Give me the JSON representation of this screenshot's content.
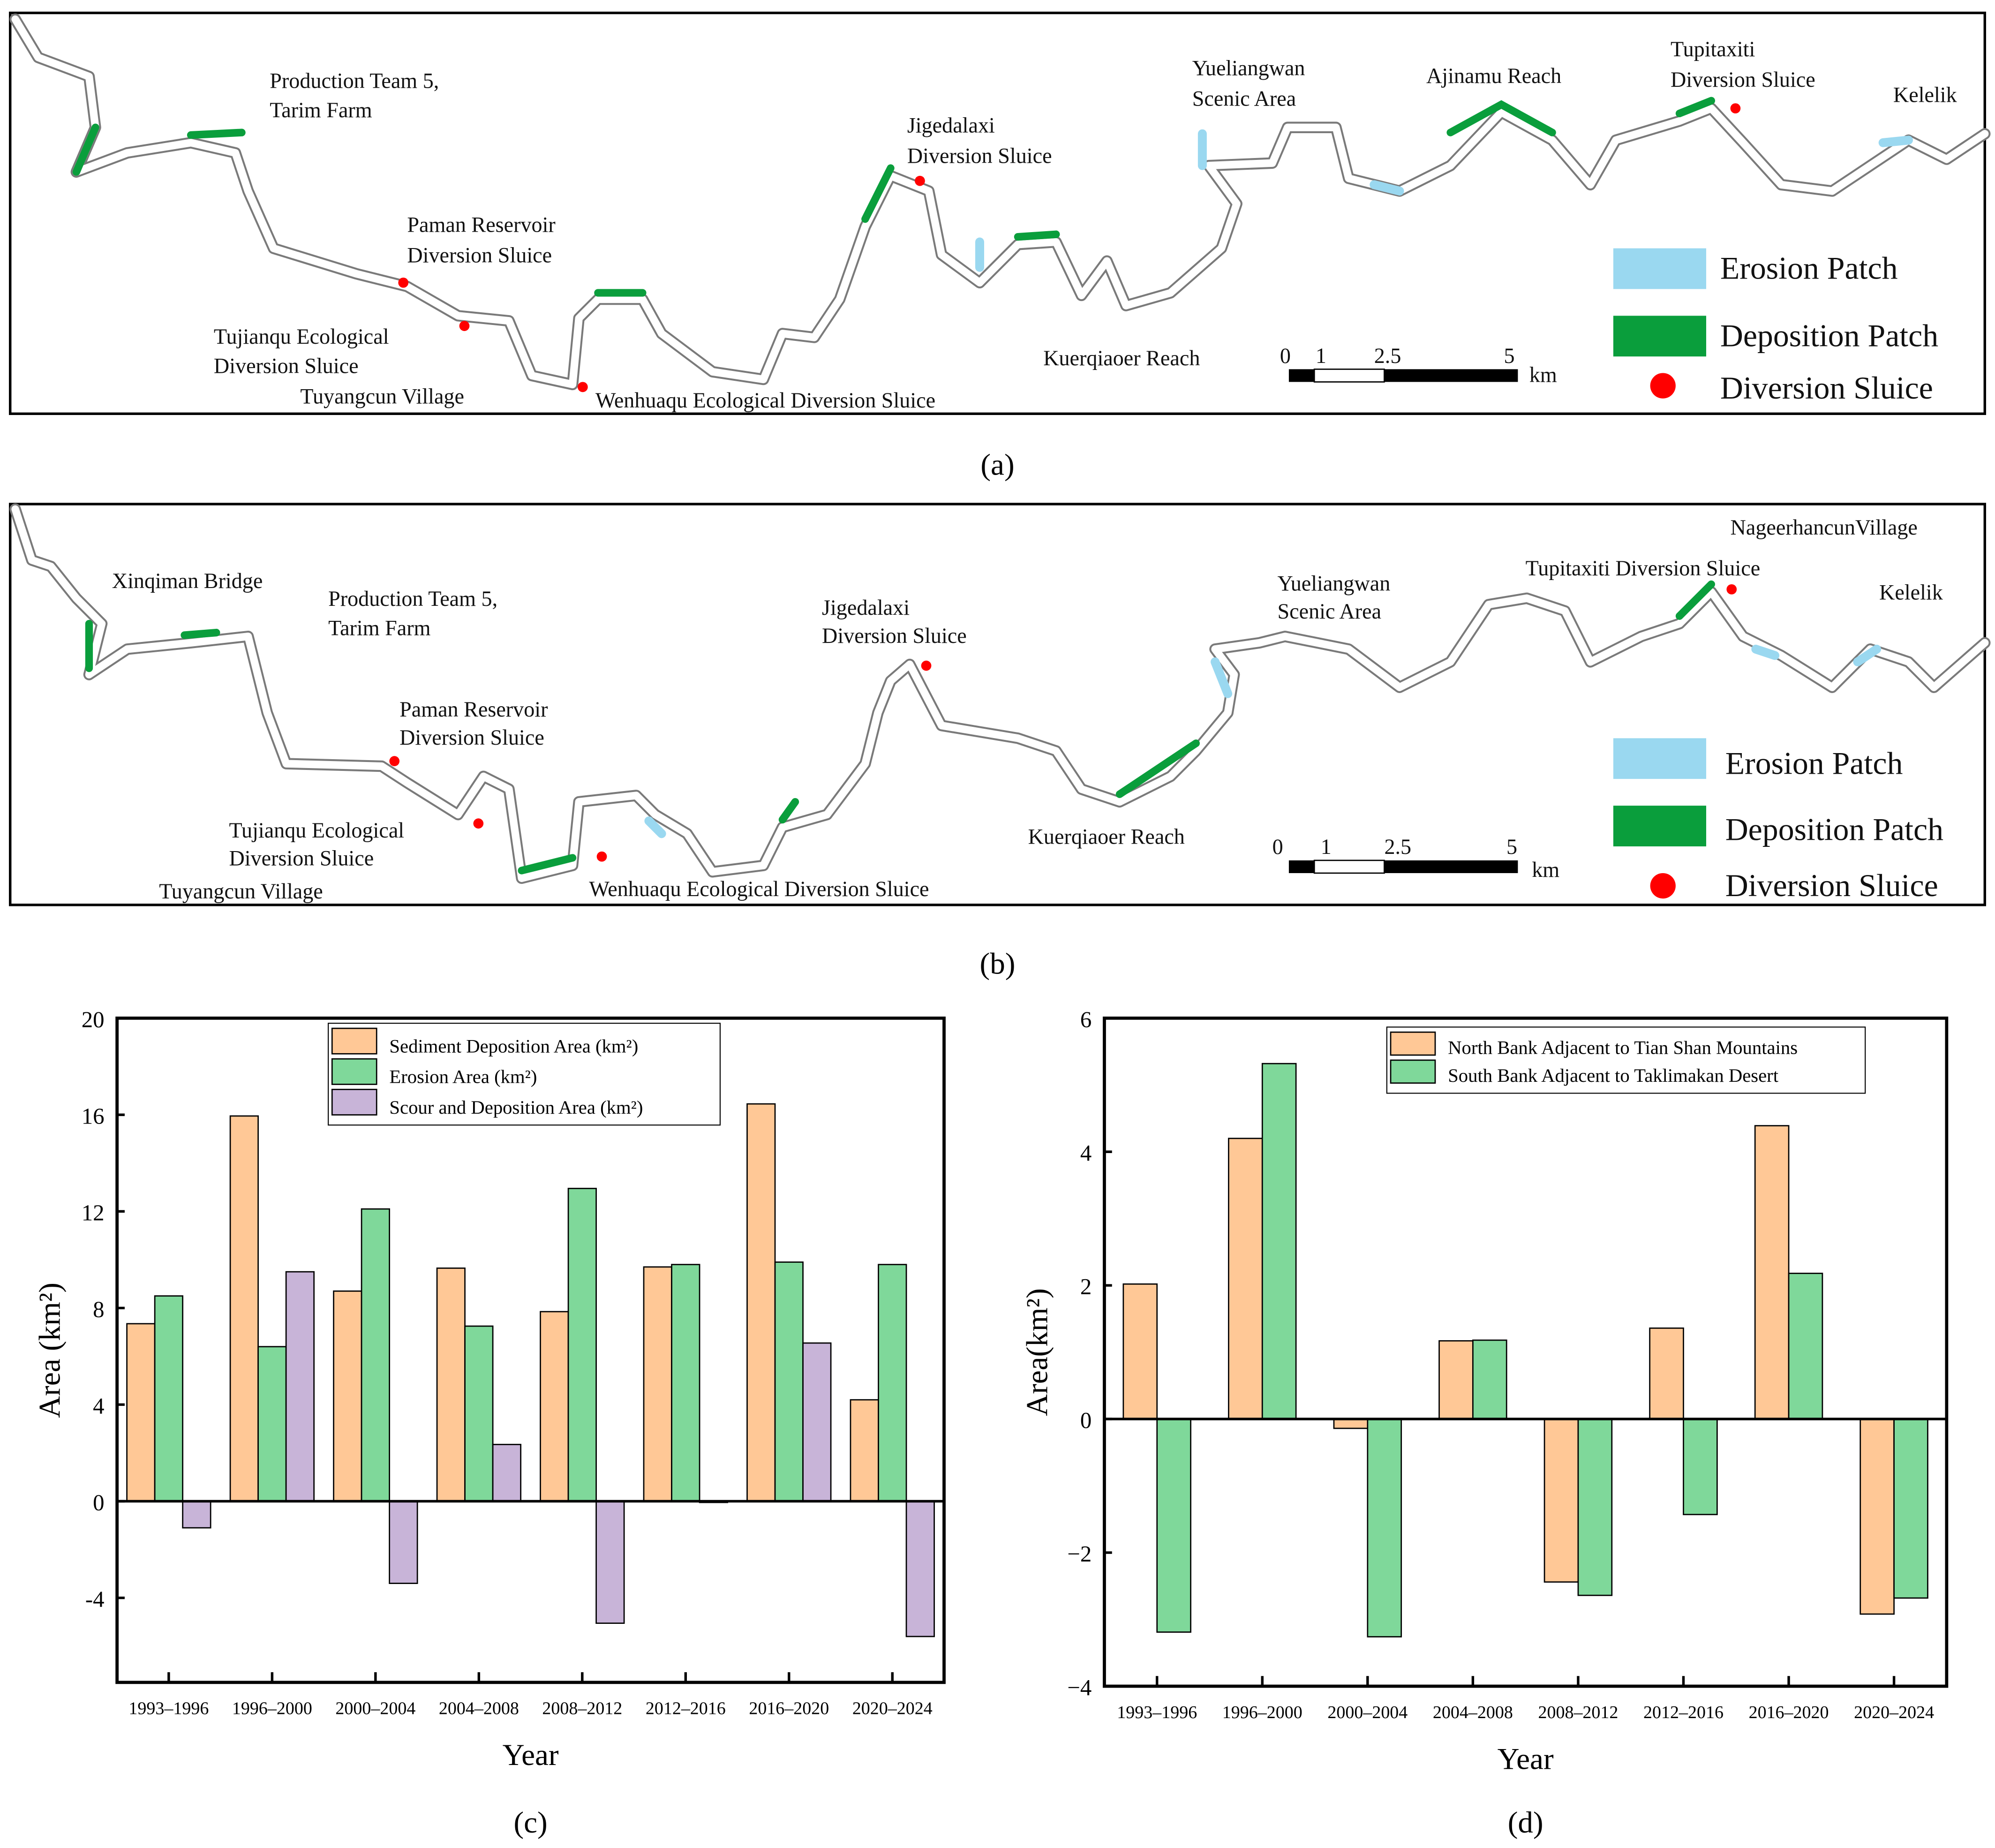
{
  "panel_a": {
    "caption": "(a)",
    "labels": [
      "Production Team 5,",
      "Tarim Farm",
      "Paman Reservoir",
      "Diversion Sluice",
      "Tujianqu Ecological",
      "Diversion Sluice",
      "Tuyangcun Village",
      "Wenhuaqu Ecological Diversion Sluice",
      "Jigedalaxi",
      "Diversion Sluice",
      "Kuerqiaoer Reach",
      "Yueliangwan",
      "Scenic Area",
      "Ajinamu Reach",
      "Tupitaxiti",
      "Diversion Sluice",
      "Kelelik"
    ]
  },
  "panel_b": {
    "caption": "(b)",
    "labels": [
      "Xinqiman Bridge",
      "Production Team 5,",
      "Tarim Farm",
      "Paman Reservoir",
      "Diversion Sluice",
      "Tujianqu Ecological",
      "Diversion Sluice",
      "Tuyangcun Village",
      "Wenhuaqu Ecological Diversion Sluice",
      "Jigedalaxi",
      "Diversion Sluice",
      "Kuerqiaoer Reach",
      "Yueliangwan",
      "Scenic Area",
      "Tupitaxiti Diversion Sluice",
      "NageerhancunVillage",
      "Kelelik"
    ]
  },
  "map_legend": {
    "erosion": "Erosion Patch",
    "deposition": "Deposition Patch",
    "sluice": "Diversion Sluice"
  },
  "scale_bar": {
    "ticks": [
      "0",
      "1",
      "2.5",
      "5"
    ],
    "unit": "km"
  },
  "colors": {
    "erosion": "#9ad8f0",
    "deposition": "#0a9e3c",
    "sluice": "#ff0000",
    "orange": "#ffc896",
    "green": "#7fd89a",
    "purple": "#c8b4d8"
  },
  "chart_data": [
    {
      "type": "bar",
      "caption": "(c)",
      "xlabel": "Year",
      "ylabel": "Area (km²)",
      "ylim": [
        -7.5,
        20
      ],
      "yticks": [
        "20",
        "16",
        "12",
        "8",
        "4",
        "0",
        "-4"
      ],
      "ytick_values": [
        20,
        16,
        12,
        8,
        4,
        0,
        -4
      ],
      "legend_position": "top-center",
      "categories": [
        "1993–1996",
        "1996–2000",
        "2000–2004",
        "2004–2008",
        "2008–2012",
        "2012–2016",
        "2016–2020",
        "2020–2024"
      ],
      "series": [
        {
          "name": "Sediment Deposition Area (km²)",
          "color": "#ffc896",
          "values": [
            7.35,
            15.95,
            8.7,
            9.65,
            7.85,
            9.7,
            16.45,
            4.2
          ]
        },
        {
          "name": "Erosion Area (km²)",
          "color": "#7fd89a",
          "values": [
            8.5,
            6.4,
            12.1,
            7.25,
            12.95,
            9.8,
            9.9,
            9.8
          ]
        },
        {
          "name": "Scour and Deposition Area (km²)",
          "color": "#c8b4d8",
          "values": [
            -1.1,
            9.5,
            -3.4,
            2.35,
            -5.05,
            -0.05,
            6.55,
            -5.6
          ]
        }
      ]
    },
    {
      "type": "bar",
      "caption": "(d)",
      "xlabel": "Year",
      "ylabel": "Area(km²)",
      "ylim": [
        -4,
        6
      ],
      "yticks": [
        "6",
        "4",
        "2",
        "0",
        "−2",
        "−4"
      ],
      "ytick_values": [
        6,
        4,
        2,
        0,
        -2,
        -4
      ],
      "legend_position": "top-right",
      "categories": [
        "1993–1996",
        "1996–2000",
        "2000–2004",
        "2004–2008",
        "2008–2012",
        "2012–2016",
        "2016–2020",
        "2020–2024"
      ],
      "series": [
        {
          "name": "North Bank Adjacent to Tian Shan Mountains",
          "color": "#ffc896",
          "values": [
            2.02,
            4.2,
            -0.14,
            1.17,
            -2.44,
            1.36,
            4.39,
            -2.92
          ]
        },
        {
          "name": "South Bank Adjacent to Taklimakan Desert",
          "color": "#7fd89a",
          "values": [
            -3.19,
            5.32,
            -3.26,
            1.18,
            -2.64,
            -1.43,
            2.18,
            -2.68
          ]
        }
      ]
    }
  ]
}
